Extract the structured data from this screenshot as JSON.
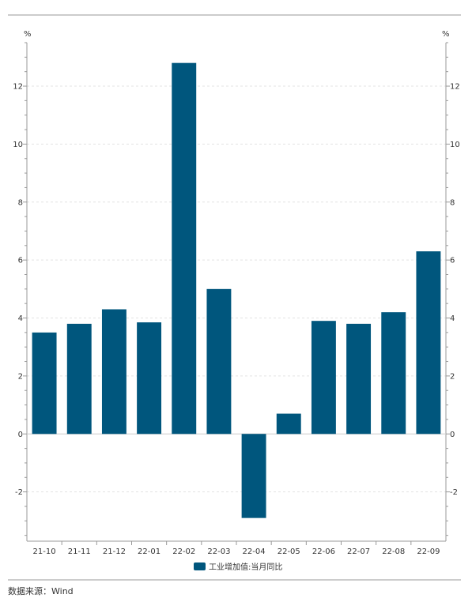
{
  "chart_data": {
    "type": "bar",
    "categories": [
      "21-10",
      "21-11",
      "21-12",
      "22-01",
      "22-02",
      "22-03",
      "22-04",
      "22-05",
      "22-06",
      "22-07",
      "22-08",
      "22-09"
    ],
    "series": [
      {
        "name": "工业增加值:当月同比",
        "values": [
          3.5,
          3.8,
          4.3,
          3.85,
          12.8,
          5.0,
          -2.9,
          0.7,
          3.9,
          3.8,
          4.2,
          6.3
        ]
      }
    ],
    "ylim": [
      -3.7,
      13.5
    ],
    "yticks": [
      -2,
      0,
      2,
      4,
      6,
      8,
      10,
      12
    ],
    "y_unit_left": "%",
    "y_unit_right": "%",
    "grid": true,
    "legend_position": "bottom-center",
    "colors": {
      "bar": "#00567d",
      "grid": "#e3e3e3",
      "axis": "#999999"
    }
  },
  "source_text": "数据来源：Wind"
}
